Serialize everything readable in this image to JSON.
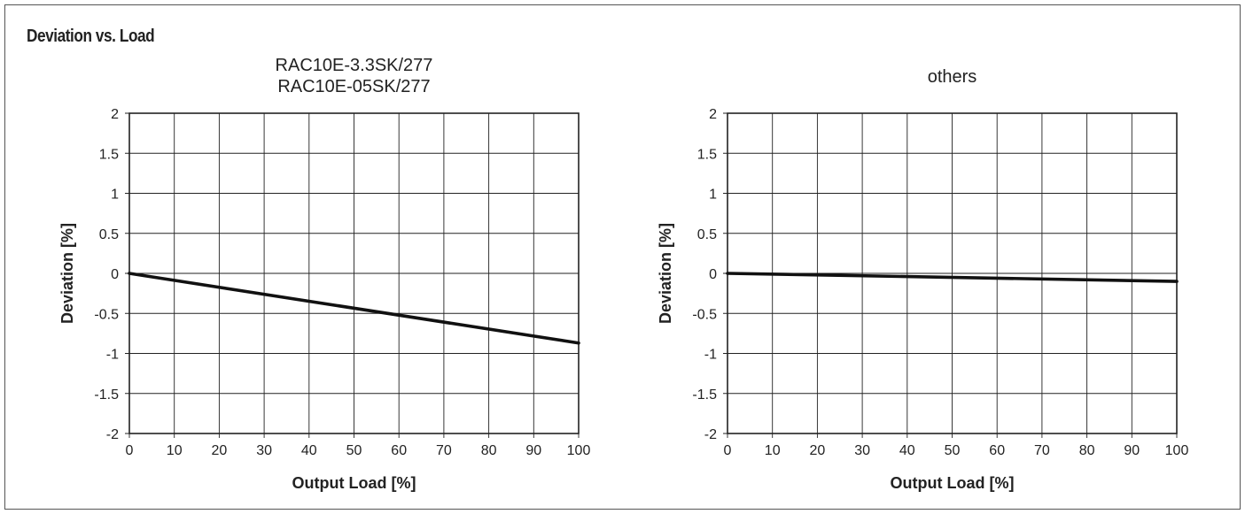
{
  "page_title": "Deviation vs. Load",
  "chart_data": [
    {
      "type": "line",
      "title_lines": [
        "RAC10E-3.3SK/277",
        "RAC10E-05SK/277"
      ],
      "xlabel": "Output Load [%]",
      "ylabel": "Deviation [%]",
      "xlim": [
        0,
        100
      ],
      "ylim": [
        -2,
        2
      ],
      "x_ticks": [
        "0",
        "10",
        "20",
        "30",
        "40",
        "50",
        "60",
        "70",
        "80",
        "90",
        "100"
      ],
      "y_ticks": [
        "2",
        "1.5",
        "1",
        "0.5",
        "0",
        "-0.5",
        "-1",
        "-1.5",
        "-2"
      ],
      "grid": true,
      "series": [
        {
          "x": [
            0,
            100
          ],
          "values": [
            0,
            -0.87
          ]
        }
      ]
    },
    {
      "type": "line",
      "title_lines": [
        "others"
      ],
      "xlabel": "Output Load [%]",
      "ylabel": "Deviation [%]",
      "xlim": [
        0,
        100
      ],
      "ylim": [
        -2,
        2
      ],
      "x_ticks": [
        "0",
        "10",
        "20",
        "30",
        "40",
        "50",
        "60",
        "70",
        "80",
        "90",
        "100"
      ],
      "y_ticks": [
        "2",
        "1.5",
        "1",
        "0.5",
        "0",
        "-0.5",
        "-1",
        "-1.5",
        "-2"
      ],
      "grid": true,
      "series": [
        {
          "x": [
            0,
            100
          ],
          "values": [
            0,
            -0.1
          ]
        }
      ]
    }
  ]
}
